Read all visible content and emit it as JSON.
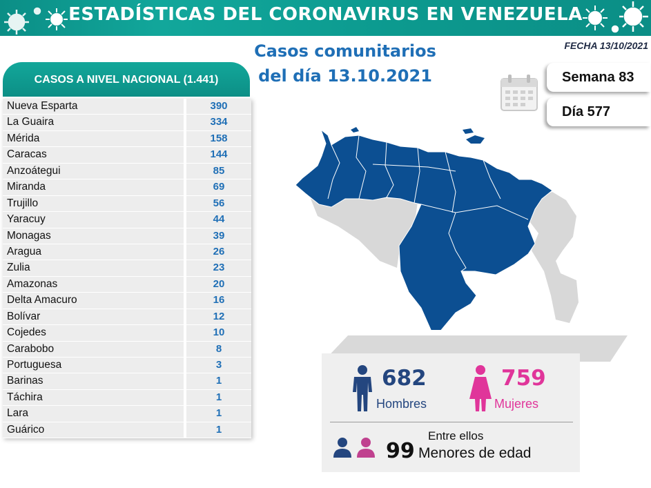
{
  "header": {
    "title": "ESTADÍSTICAS DEL CORONAVIRUS EN VENEZUELA"
  },
  "fecha": "FECHA 13/10/2021",
  "main_title": {
    "line1": "Casos comunitarios",
    "line2": "del día 13.10.2021"
  },
  "semana": "Semana 83",
  "dia": "Día 577",
  "table": {
    "header": "CASOS A NIVEL NACIONAL (1.441)",
    "rows": [
      {
        "state": "Nueva Esparta",
        "cases": "390"
      },
      {
        "state": "La Guaira",
        "cases": "334"
      },
      {
        "state": "Mérida",
        "cases": "158"
      },
      {
        "state": "Caracas",
        "cases": "144"
      },
      {
        "state": "Anzoátegui",
        "cases": "85"
      },
      {
        "state": "Miranda",
        "cases": "69"
      },
      {
        "state": "Trujillo",
        "cases": "56"
      },
      {
        "state": "Yaracuy",
        "cases": "44"
      },
      {
        "state": "Monagas",
        "cases": "39"
      },
      {
        "state": "Aragua",
        "cases": "26"
      },
      {
        "state": "Zulia",
        "cases": "23"
      },
      {
        "state": "Amazonas",
        "cases": "20"
      },
      {
        "state": "Delta Amacuro",
        "cases": "16"
      },
      {
        "state": "Bolívar",
        "cases": "12"
      },
      {
        "state": "Cojedes",
        "cases": "10"
      },
      {
        "state": "Carabobo",
        "cases": "8"
      },
      {
        "state": "Portuguesa",
        "cases": "3"
      },
      {
        "state": "Barinas",
        "cases": "1"
      },
      {
        "state": "Táchira",
        "cases": "1"
      },
      {
        "state": "Lara",
        "cases": "1"
      },
      {
        "state": "Guárico",
        "cases": "1"
      }
    ]
  },
  "gender": {
    "men_count": "682",
    "men_label": "Hombres",
    "women_count": "759",
    "women_label": "Mujeres",
    "entre_label": "Entre ellos",
    "minors_count": "99",
    "minors_label": "Menores de edad"
  },
  "colors": {
    "banner": "#0c9a8f",
    "title_blue": "#1f6fb6",
    "map_blue": "#0c4f92",
    "men": "#24467f",
    "women": "#e0359a"
  },
  "icons": [
    "virus-icon",
    "calendar-icon",
    "man-icon",
    "woman-icon",
    "people-icon"
  ]
}
